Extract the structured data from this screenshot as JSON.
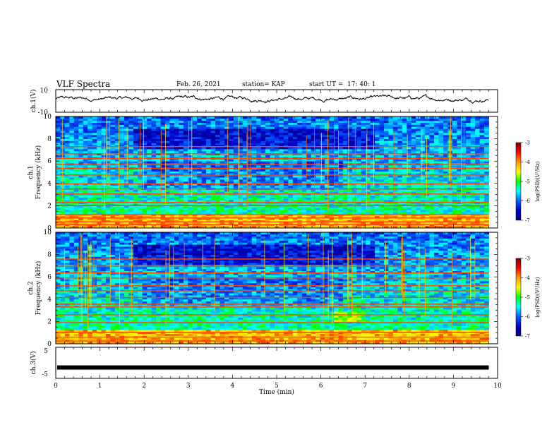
{
  "header": {
    "title": "VLF Spectra",
    "date": "Feb. 26, 2021",
    "station": "station= KAP",
    "start_label": "start UT =",
    "start_time": "17: 40: 1"
  },
  "colorbar": {
    "label": "log(PSD)(V²/Hz)",
    "ticks": [
      "-3",
      "-4",
      "-5",
      "-6",
      "-7"
    ],
    "stops": [
      "#7a0000",
      "#ff0000",
      "#ff9900",
      "#ffff00",
      "#00ff00",
      "#00ffff",
      "#0060ff",
      "#0000cc",
      "#000080"
    ]
  },
  "chart_data": [
    {
      "type": "line",
      "name": "ch1-waveform",
      "ylabel": "ch.1(V)",
      "ylim": [
        -10,
        10
      ],
      "yticks": [
        "10",
        "-10"
      ],
      "xlim": [
        0,
        10
      ],
      "approx_mean": 2,
      "approx_range": [
        -4,
        9
      ]
    },
    {
      "type": "heatmap",
      "name": "ch1-spectrogram",
      "ylabel_channel": "ch.1",
      "ylabel": "Frequency (kHz)",
      "ylim": [
        0,
        10
      ],
      "yticks": [
        "0",
        "2",
        "4",
        "6",
        "8",
        "10"
      ],
      "xlim": [
        0,
        9.8
      ]
    },
    {
      "type": "heatmap",
      "name": "ch2-spectrogram",
      "ylabel_channel": "ch.2",
      "ylabel": "Frequency (kHz)",
      "ylim": [
        0,
        10
      ],
      "yticks": [
        "0",
        "2",
        "4",
        "6",
        "8",
        "10"
      ],
      "xlim": [
        0,
        9.8
      ]
    },
    {
      "type": "line",
      "name": "ch3-waveform",
      "ylabel": "ch.3(V)",
      "ylim": [
        -5,
        5
      ],
      "yticks": [
        "5",
        "-5"
      ],
      "xlim": [
        0,
        10
      ],
      "approx_mean": -1.5,
      "xlabel": "Time (min)",
      "xticks": [
        "0",
        "1",
        "2",
        "3",
        "4",
        "5",
        "6",
        "7",
        "8",
        "9",
        "10"
      ]
    }
  ]
}
